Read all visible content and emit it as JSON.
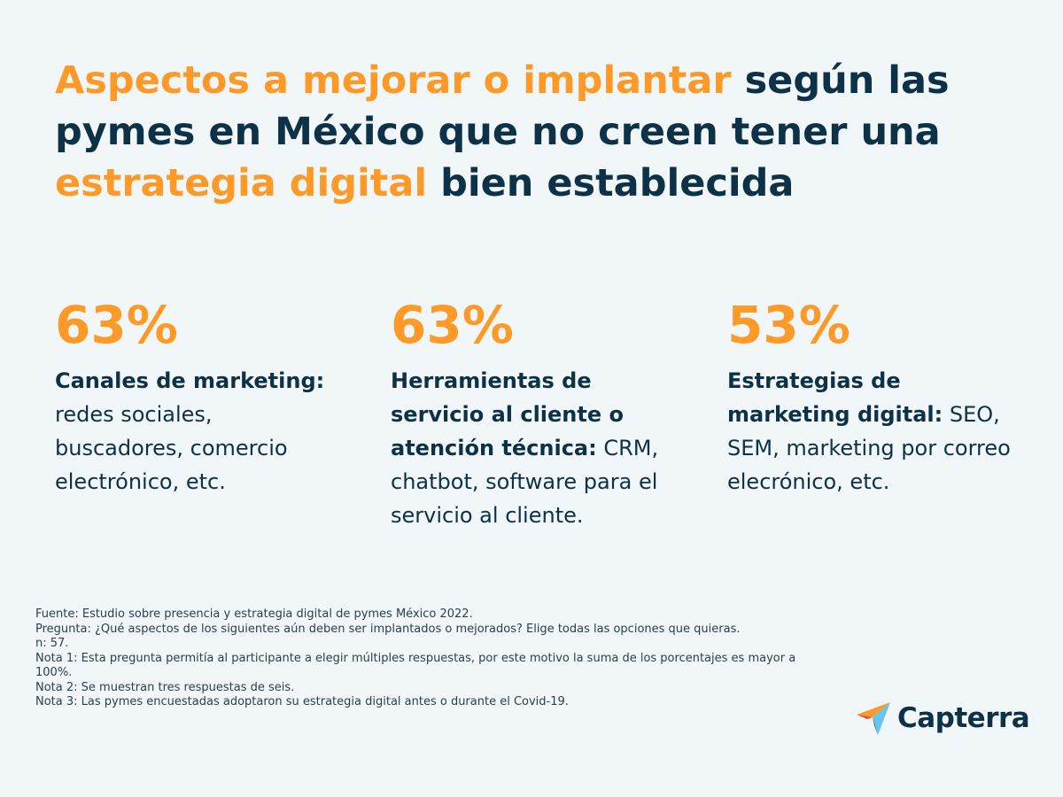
{
  "title": {
    "part1": "Aspectos a mejorar o implantar",
    "part2": " según las pymes en México que no creen tener una ",
    "part3": "estrategia digital",
    "part4": " bien establecida"
  },
  "stats": [
    {
      "value": "63%",
      "label": "Canales de marketing:",
      "detail": " redes sociales, buscadores, comercio electrónico, etc."
    },
    {
      "value": "63%",
      "label": "Herramientas de servicio al cliente o atención técnica:",
      "detail": " CRM, chatbot, software para el servicio al cliente."
    },
    {
      "value": "53%",
      "label": "Estrategias de marketing digital:",
      "detail": " SEO, SEM, marketing por correo elecrónico, etc."
    }
  ],
  "notes": [
    "Fuente: Estudio sobre presencia y estrategia digital de pymes México 2022.",
    "Pregunta: ¿Qué aspectos de los siguientes aún deben ser implantados o mejorados? Elige todas las opciones que quieras.",
    "n: 57.",
    "Nota 1: Esta pregunta permitía al participante a elegir múltiples respuestas, por este motivo la suma de los porcentajes es mayor a 100%.",
    "Nota 2: Se muestran tres respuestas de seis.",
    "Nota 3: Las pymes encuestadas adoptaron su estrategia digital antes o durante el Covid-19."
  ],
  "logo": {
    "icon": "capterra-arrow-icon",
    "text": "Capterra"
  },
  "colors": {
    "accent": "#ff9a29",
    "primary": "#0d3146",
    "background": "#f1f6f8"
  }
}
